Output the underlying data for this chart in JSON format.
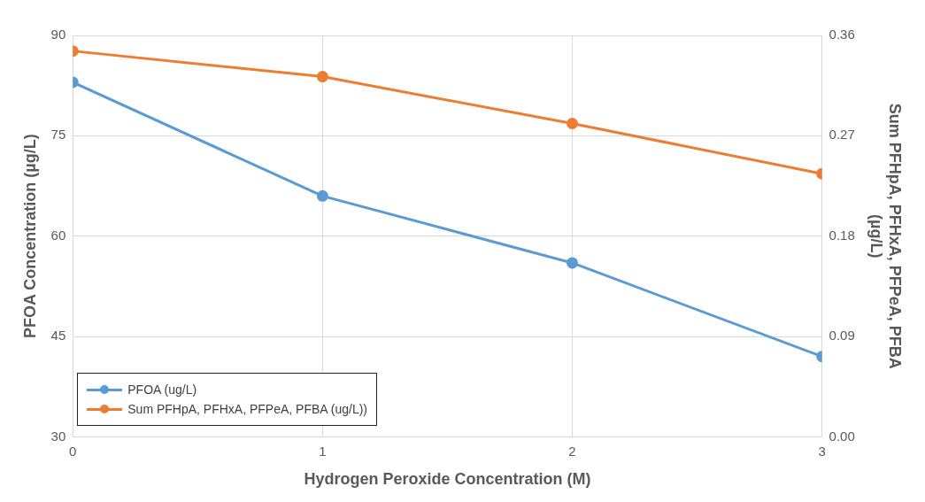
{
  "chart_data": {
    "type": "line",
    "xlabel": "Hydrogen Peroxide Concentration (M)",
    "ylabel": "PFOA Concentration (µg/L)",
    "y2label": "Sum PFHpA, PFHxA, PFPeA, PFBA (µg/L)",
    "x": [
      0,
      1,
      2,
      3
    ],
    "xlim": [
      0,
      3
    ],
    "xticks": [
      0,
      1,
      2,
      3
    ],
    "ylim": [
      30,
      90
    ],
    "yticks": [
      30,
      45,
      60,
      75,
      90
    ],
    "y2lim": [
      0,
      0.36
    ],
    "y2ticks": [
      {
        "value": 0,
        "label": "0.00"
      },
      {
        "value": 0.09,
        "label": "0.09"
      },
      {
        "value": 0.18,
        "label": "0.18"
      },
      {
        "value": 0.27,
        "label": "0.27"
      },
      {
        "value": 0.36,
        "label": "0.36"
      }
    ],
    "series": [
      {
        "name": "PFOA (ug/L)",
        "color": "#5b9bd5",
        "values": [
          83,
          66,
          56,
          42
        ]
      },
      {
        "name": "Sum PFHpA, PFHxA, PFPeA, PFBA (ug/L))",
        "color": "#ed7d31",
        "axis": "y2",
        "values": [
          0.346,
          0.323,
          0.281,
          0.236
        ]
      }
    ],
    "grid": true,
    "legend": "bottom left",
    "marker": "circle",
    "line_style": "solid"
  }
}
